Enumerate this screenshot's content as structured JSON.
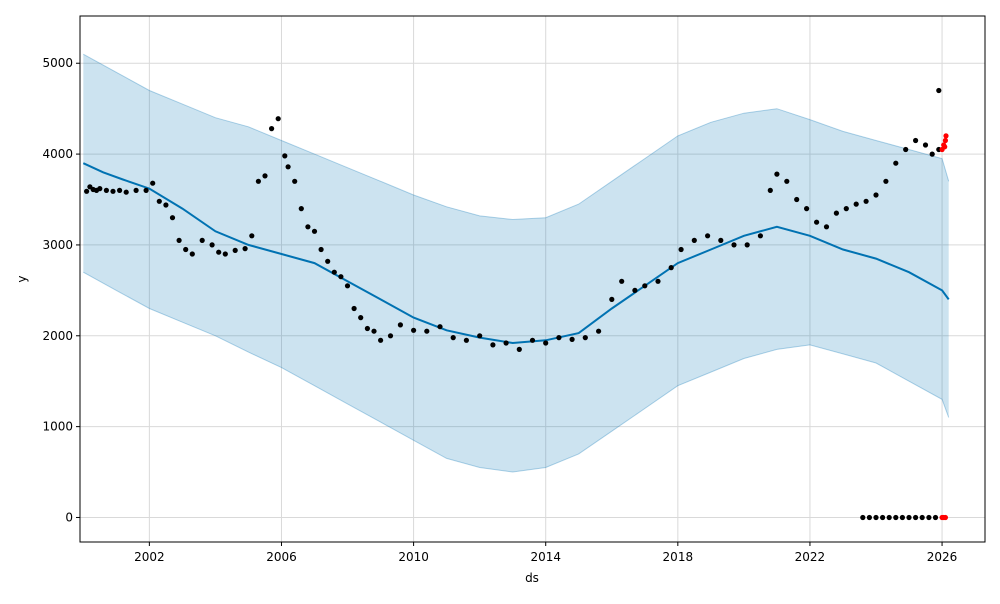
{
  "chart_data": {
    "type": "scatter",
    "xlabel": "ds",
    "ylabel": "y",
    "x_ticks": [
      "2002",
      "2006",
      "2010",
      "2014",
      "2018",
      "2022",
      "2026"
    ],
    "y_ticks": [
      0,
      1000,
      2000,
      3000,
      4000,
      5000
    ],
    "xlim": [
      1999.9,
      2027.3
    ],
    "ylim": [
      -270,
      5520
    ],
    "grid": true,
    "colors": {
      "observed": "#000000",
      "forecast_line": "#0072B2",
      "uncertainty_band": "#0072B2",
      "recent_points": "#ff0000"
    },
    "series": [
      {
        "kind": "observed_points",
        "color": "#000000",
        "points": [
          [
            2000.1,
            3590
          ],
          [
            2000.2,
            3640
          ],
          [
            2000.3,
            3610
          ],
          [
            2000.4,
            3600
          ],
          [
            2000.5,
            3620
          ],
          [
            2000.7,
            3600
          ],
          [
            2000.9,
            3590
          ],
          [
            2001.1,
            3600
          ],
          [
            2001.3,
            3580
          ],
          [
            2001.6,
            3600
          ],
          [
            2001.9,
            3600
          ],
          [
            2002.1,
            3680
          ],
          [
            2002.3,
            3480
          ],
          [
            2002.5,
            3440
          ],
          [
            2002.7,
            3300
          ],
          [
            2002.9,
            3050
          ],
          [
            2003.1,
            2950
          ],
          [
            2003.3,
            2900
          ],
          [
            2003.6,
            3050
          ],
          [
            2003.9,
            3000
          ],
          [
            2004.1,
            2920
          ],
          [
            2004.3,
            2900
          ],
          [
            2004.6,
            2940
          ],
          [
            2004.9,
            2960
          ],
          [
            2005.1,
            3100
          ],
          [
            2005.3,
            3700
          ],
          [
            2005.5,
            3760
          ],
          [
            2005.7,
            4280
          ],
          [
            2005.9,
            4390
          ],
          [
            2006.1,
            3980
          ],
          [
            2006.2,
            3860
          ],
          [
            2006.4,
            3700
          ],
          [
            2006.6,
            3400
          ],
          [
            2006.8,
            3200
          ],
          [
            2007.0,
            3150
          ],
          [
            2007.2,
            2950
          ],
          [
            2007.4,
            2820
          ],
          [
            2007.6,
            2700
          ],
          [
            2007.8,
            2650
          ],
          [
            2008.0,
            2550
          ],
          [
            2008.2,
            2300
          ],
          [
            2008.4,
            2200
          ],
          [
            2008.6,
            2080
          ],
          [
            2008.8,
            2050
          ],
          [
            2009.0,
            1950
          ],
          [
            2009.3,
            2000
          ],
          [
            2009.6,
            2120
          ],
          [
            2010.0,
            2060
          ],
          [
            2010.4,
            2050
          ],
          [
            2010.8,
            2100
          ],
          [
            2011.2,
            1980
          ],
          [
            2011.6,
            1950
          ],
          [
            2012.0,
            2000
          ],
          [
            2012.4,
            1900
          ],
          [
            2012.8,
            1920
          ],
          [
            2013.2,
            1850
          ],
          [
            2013.6,
            1950
          ],
          [
            2014.0,
            1920
          ],
          [
            2014.4,
            1980
          ],
          [
            2014.8,
            1960
          ],
          [
            2015.2,
            1980
          ],
          [
            2015.6,
            2050
          ],
          [
            2016.0,
            2400
          ],
          [
            2016.3,
            2600
          ],
          [
            2016.7,
            2500
          ],
          [
            2017.0,
            2550
          ],
          [
            2017.4,
            2600
          ],
          [
            2017.8,
            2750
          ],
          [
            2018.1,
            2950
          ],
          [
            2018.5,
            3050
          ],
          [
            2018.9,
            3100
          ],
          [
            2019.3,
            3050
          ],
          [
            2019.7,
            3000
          ],
          [
            2020.1,
            3000
          ],
          [
            2020.5,
            3100
          ],
          [
            2020.8,
            3600
          ],
          [
            2021.0,
            3780
          ],
          [
            2021.3,
            3700
          ],
          [
            2021.6,
            3500
          ],
          [
            2021.9,
            3400
          ],
          [
            2022.2,
            3250
          ],
          [
            2022.5,
            3200
          ],
          [
            2022.8,
            3350
          ],
          [
            2023.1,
            3400
          ],
          [
            2023.4,
            3450
          ],
          [
            2023.7,
            3480
          ],
          [
            2024.0,
            3550
          ],
          [
            2024.3,
            3700
          ],
          [
            2024.6,
            3900
          ],
          [
            2024.9,
            4050
          ],
          [
            2025.2,
            4150
          ],
          [
            2025.5,
            4100
          ],
          [
            2025.7,
            4000
          ],
          [
            2025.9,
            4050
          ],
          [
            2025.9,
            4700
          ],
          [
            2023.6,
            0
          ],
          [
            2023.8,
            0
          ],
          [
            2024.0,
            0
          ],
          [
            2024.2,
            0
          ],
          [
            2024.4,
            0
          ],
          [
            2024.6,
            0
          ],
          [
            2024.8,
            0
          ],
          [
            2025.0,
            0
          ],
          [
            2025.2,
            0
          ],
          [
            2025.4,
            0
          ],
          [
            2025.6,
            0
          ],
          [
            2025.8,
            0
          ]
        ]
      },
      {
        "kind": "recent_points",
        "color": "#ff0000",
        "points": [
          [
            2026.0,
            4050
          ],
          [
            2026.05,
            4100
          ],
          [
            2026.1,
            4150
          ],
          [
            2026.12,
            4200
          ],
          [
            2026.08,
            4080
          ],
          [
            2026.0,
            0
          ],
          [
            2026.05,
            0
          ],
          [
            2026.1,
            0
          ]
        ]
      },
      {
        "kind": "forecast_line",
        "color": "#0072B2",
        "x": [
          2000.0,
          2000.6,
          2001.2,
          2002.0,
          2003.0,
          2004.0,
          2005.0,
          2006.0,
          2007.0,
          2008.0,
          2009.0,
          2010.0,
          2011.0,
          2012.0,
          2013.0,
          2014.0,
          2015.0,
          2016.0,
          2017.0,
          2018.0,
          2019.0,
          2020.0,
          2021.0,
          2022.0,
          2023.0,
          2024.0,
          2025.0,
          2026.0,
          2026.2
        ],
        "y": [
          3900,
          3800,
          3720,
          3620,
          3400,
          3150,
          3000,
          2900,
          2800,
          2600,
          2400,
          2200,
          2060,
          1980,
          1920,
          1950,
          2030,
          2300,
          2550,
          2800,
          2950,
          3100,
          3200,
          3100,
          2950,
          2850,
          2700,
          2500,
          2400
        ]
      },
      {
        "kind": "uncertainty_band",
        "color": "#0072B2",
        "x": [
          2000.0,
          2001.0,
          2002.0,
          2003.0,
          2004.0,
          2005.0,
          2006.0,
          2007.0,
          2008.0,
          2009.0,
          2010.0,
          2011.0,
          2012.0,
          2013.0,
          2014.0,
          2015.0,
          2016.0,
          2017.0,
          2018.0,
          2019.0,
          2020.0,
          2021.0,
          2022.0,
          2023.0,
          2024.0,
          2025.0,
          2026.0,
          2026.2
        ],
        "upper": [
          5100,
          4900,
          4700,
          4550,
          4400,
          4300,
          4150,
          4000,
          3850,
          3700,
          3550,
          3420,
          3320,
          3280,
          3300,
          3450,
          3700,
          3950,
          4200,
          4350,
          4450,
          4500,
          4380,
          4250,
          4150,
          4050,
          3950,
          3700
        ],
        "lower": [
          2700,
          2500,
          2300,
          2150,
          2000,
          1820,
          1650,
          1450,
          1250,
          1050,
          850,
          650,
          550,
          500,
          550,
          700,
          950,
          1200,
          1450,
          1600,
          1750,
          1850,
          1900,
          1800,
          1700,
          1500,
          1300,
          1100
        ]
      }
    ]
  }
}
